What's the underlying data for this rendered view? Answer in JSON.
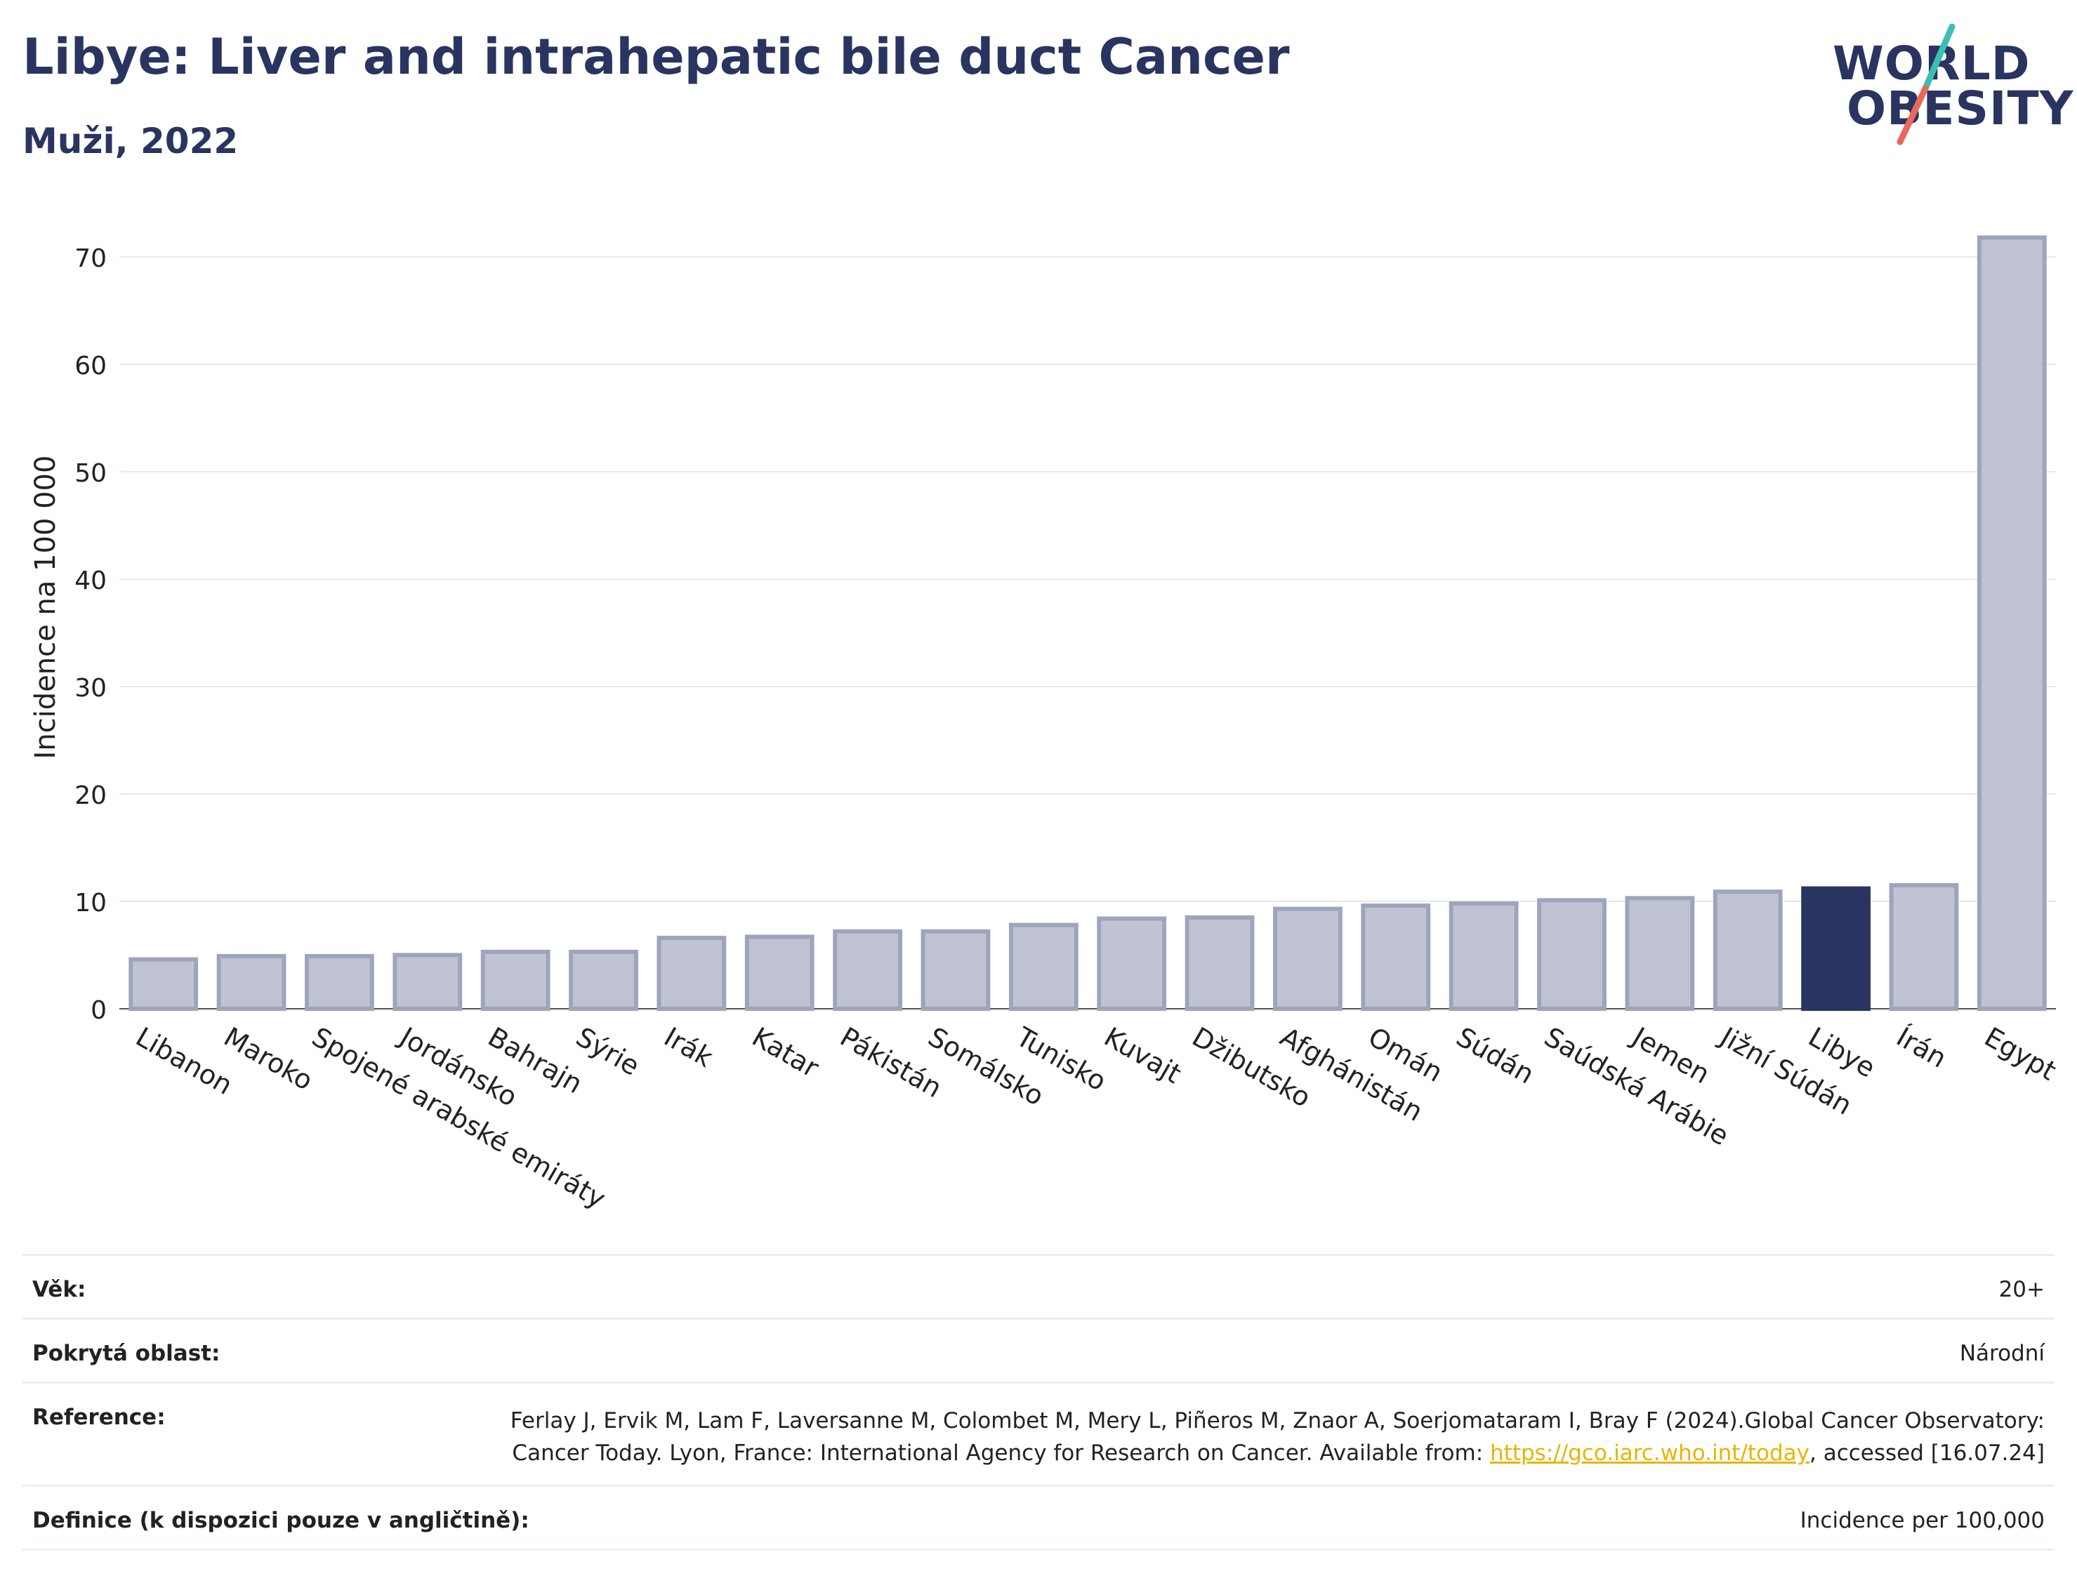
{
  "header": {
    "title": "Libye: Liver and intrahepatic bile duct Cancer",
    "subtitle": "Muži, 2022"
  },
  "logo": {
    "line1": "WORLD",
    "line2": "OBESITY",
    "accent_teal": "#3bbfb2",
    "accent_coral": "#e8685a"
  },
  "colors": {
    "bar": "#bfc3d2",
    "bar_edge": "#9ea4bb",
    "highlight": "#2a3460",
    "grid": "#e6e8ee"
  },
  "chart_data": {
    "type": "bar",
    "ylabel": "Incidence na 100 000",
    "xlabel": "",
    "ylim": [
      0,
      73
    ],
    "yticks": [
      0,
      10,
      20,
      30,
      40,
      50,
      60,
      70
    ],
    "grid": true,
    "highlight": "Libye",
    "categories": [
      "Libanon",
      "Maroko",
      "Spojené arabské emiráty",
      "Jordánsko",
      "Bahrajn",
      "Sýrie",
      "Irák",
      "Katar",
      "Pákistán",
      "Somálsko",
      "Tunisko",
      "Kuvajt",
      "Džibutsko",
      "Afghánistán",
      "Omán",
      "Súdán",
      "Saúdská Arábie",
      "Jemen",
      "Jižní Súdán",
      "Libye",
      "Írán",
      "Egypt"
    ],
    "values": [
      4.6,
      4.9,
      4.9,
      5.0,
      5.3,
      5.3,
      6.6,
      6.7,
      7.2,
      7.2,
      7.8,
      8.4,
      8.5,
      9.3,
      9.6,
      9.8,
      10.1,
      10.3,
      10.9,
      11.2,
      11.5,
      71.8
    ]
  },
  "info": {
    "age_label": "Věk:",
    "age_value": "20+",
    "coverage_label": "Pokrytá oblast:",
    "coverage_value": "Národní",
    "reference_label": "Reference:",
    "reference_text1": "Ferlay J, Ervik M, Lam F, Laversanne M, Colombet M, Mery L, Piñeros M, Znaor A, Soerjomataram I, Bray F (2024).Global Cancer Observatory: Cancer Today. Lyon, France: International Agency for Research on Cancer. Available from: ",
    "reference_link": "https://gco.iarc.who.int/today",
    "reference_text2": ", accessed [16.07.24]",
    "definition_label": "Definice (k dispozici pouze v angličtině):",
    "definition_value": "Incidence per 100,000"
  }
}
